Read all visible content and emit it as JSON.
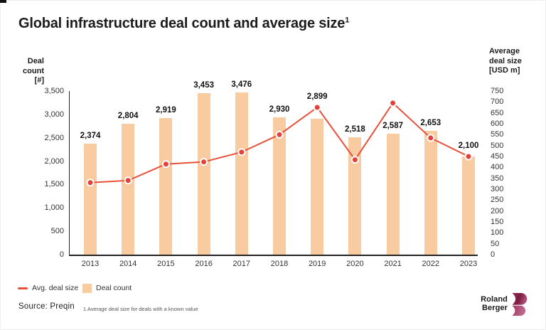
{
  "title": {
    "text": "Global infrastructure deal count and average size",
    "superscript": "1"
  },
  "axes": {
    "left": {
      "title_lines": [
        "Deal count",
        "[#]"
      ],
      "ticks": [
        "3,500",
        "3,000",
        "2,500",
        "2,000",
        "1,500",
        "1,000",
        "500",
        "0"
      ],
      "max": 3500
    },
    "right": {
      "title_lines": [
        "Average",
        "deal size",
        "[USD m]"
      ],
      "ticks": [
        "750",
        "700",
        "650",
        "600",
        "550",
        "500",
        "450",
        "400",
        "350",
        "300",
        "250",
        "200",
        "150",
        "100",
        "50",
        "0"
      ],
      "max": 750
    }
  },
  "chart_data": {
    "type": "bar+line dual-axis",
    "title": "Global infrastructure deal count and average size",
    "categories": [
      "2013",
      "2014",
      "2015",
      "2016",
      "2017",
      "2018",
      "2019",
      "2020",
      "2021",
      "2022",
      "2023"
    ],
    "series": [
      {
        "name": "Deal count",
        "type": "bar",
        "axis": "left",
        "values": [
          2374,
          2804,
          2919,
          3453,
          3476,
          2930,
          2899,
          2518,
          2587,
          2653,
          2100
        ],
        "labels": [
          "2,374",
          "2,804",
          "2,919",
          "3,453",
          "3,476",
          "2,930",
          "2,899",
          "2,518",
          "2,587",
          "2,653",
          "2,100"
        ],
        "color": "#F8CBA1"
      },
      {
        "name": "Avg. deal size",
        "type": "line",
        "axis": "right",
        "values": [
          330,
          340,
          415,
          425,
          470,
          550,
          675,
          435,
          695,
          535,
          450
        ],
        "values_note": "estimated from marker positions; no data labels shown",
        "color": "#E8503A"
      }
    ],
    "left_ylim": [
      0,
      3500
    ],
    "right_ylim": [
      0,
      750
    ],
    "grid": false,
    "legend_position": "bottom-left"
  },
  "legend": {
    "line_label": "Avg. deal size",
    "bar_label": "Deal count"
  },
  "footer": {
    "source": "Source: Preqin",
    "footnote": "1 Average deal size for deals with a known value"
  },
  "logo": {
    "line1": "Roland",
    "line2": "Berger"
  },
  "colors": {
    "bar": "#F8CBA1",
    "line": "#E8503A",
    "marker": "#E2413C",
    "axis": "#222222",
    "title_text": "#1C1C1C",
    "tick_text": "#333333",
    "logo_dark": "#7C1C42",
    "logo_light": "#B05078"
  }
}
